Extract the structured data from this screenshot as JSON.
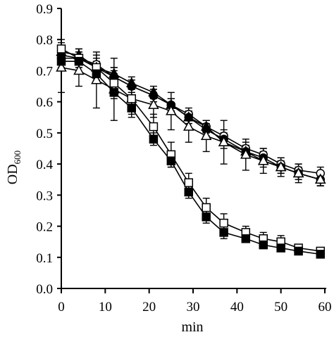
{
  "chart_data": {
    "type": "line",
    "title": "",
    "xlabel": "min",
    "ylabel": {
      "main": "OD",
      "subscript": "600"
    },
    "xlim": [
      0,
      60
    ],
    "ylim": [
      0,
      0.9
    ],
    "xticks": [
      0,
      10,
      20,
      30,
      40,
      50,
      60
    ],
    "yticks": [
      0.0,
      0.1,
      0.2,
      0.3,
      0.4,
      0.5,
      0.6,
      0.7,
      0.8,
      0.9
    ],
    "xtick_labels": [
      "0",
      "10",
      "20",
      "30",
      "40",
      "50",
      "60"
    ],
    "ytick_labels": [
      "0.0",
      "0.1",
      "0.2",
      "0.3",
      "0.4",
      "0.5",
      "0.6",
      "0.7",
      "0.8",
      "0.9"
    ],
    "grid": false,
    "legend": false,
    "x": [
      0,
      4,
      8,
      12,
      16,
      21,
      25,
      29,
      33,
      37,
      42,
      46,
      50,
      54,
      59
    ],
    "series": [
      {
        "marker": "open-circle",
        "values": [
          0.75,
          0.74,
          0.72,
          0.68,
          0.65,
          0.62,
          0.59,
          0.56,
          0.52,
          0.49,
          0.45,
          0.43,
          0.4,
          0.38,
          0.37
        ],
        "errors": [
          0.02,
          0.02,
          0.03,
          0.03,
          0.02,
          0.02,
          0.02,
          0.02,
          0.02,
          0.02,
          0.02,
          0.02,
          0.02,
          0.02,
          0.02
        ]
      },
      {
        "marker": "filled-circle",
        "values": [
          0.74,
          0.74,
          0.71,
          0.68,
          0.65,
          0.62,
          0.59,
          0.55,
          0.51,
          0.48,
          0.44,
          0.42,
          0.39,
          0.37,
          0.35
        ],
        "errors": [
          0.02,
          0.02,
          0.02,
          0.02,
          0.02,
          0.02,
          0.02,
          0.02,
          0.02,
          0.02,
          0.02,
          0.02,
          0.02,
          0.02,
          0.02
        ]
      },
      {
        "marker": "filled-triangle",
        "values": [
          0.76,
          0.75,
          0.71,
          0.69,
          0.66,
          0.63,
          0.59,
          0.55,
          0.52,
          0.47,
          0.44,
          0.41,
          0.39,
          0.37,
          0.35
        ],
        "errors": [
          0.02,
          0.02,
          0.02,
          0.02,
          0.02,
          0.02,
          0.02,
          0.02,
          0.02,
          0.02,
          0.02,
          0.02,
          0.02,
          0.02,
          0.02
        ]
      },
      {
        "marker": "open-triangle",
        "values": [
          0.71,
          0.7,
          0.67,
          0.64,
          0.61,
          0.59,
          0.57,
          0.52,
          0.49,
          0.47,
          0.43,
          0.41,
          0.39,
          0.37,
          0.35
        ],
        "errors": [
          0.08,
          0.05,
          0.09,
          0.1,
          0.06,
          0.04,
          0.06,
          0.05,
          0.05,
          0.07,
          0.05,
          0.04,
          0.03,
          0.03,
          0.02
        ]
      },
      {
        "marker": "open-square",
        "values": [
          0.77,
          0.74,
          0.71,
          0.66,
          0.61,
          0.52,
          0.43,
          0.34,
          0.26,
          0.21,
          0.18,
          0.16,
          0.15,
          0.13,
          0.12
        ],
        "errors": [
          0.03,
          0.03,
          0.03,
          0.03,
          0.03,
          0.04,
          0.04,
          0.03,
          0.03,
          0.03,
          0.02,
          0.02,
          0.02,
          0.01,
          0.01
        ]
      },
      {
        "marker": "filled-square",
        "values": [
          0.73,
          0.73,
          0.69,
          0.63,
          0.58,
          0.48,
          0.41,
          0.31,
          0.23,
          0.18,
          0.16,
          0.14,
          0.13,
          0.12,
          0.11
        ],
        "errors": [
          0.02,
          0.02,
          0.02,
          0.02,
          0.02,
          0.02,
          0.02,
          0.02,
          0.02,
          0.02,
          0.01,
          0.01,
          0.01,
          0.01,
          0.01
        ]
      }
    ]
  }
}
